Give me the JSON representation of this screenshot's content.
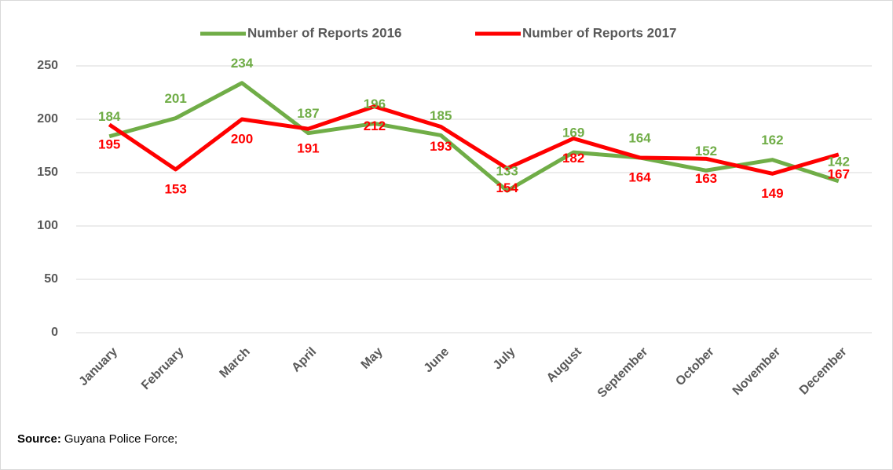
{
  "chart_data": {
    "type": "line",
    "categories": [
      "January",
      "February",
      "March",
      "April",
      "May",
      "June",
      "July",
      "August",
      "September",
      "October",
      "November",
      "December"
    ],
    "series": [
      {
        "name": "Number of Reports 2016",
        "color": "#70ad47",
        "values": [
          184,
          201,
          234,
          187,
          196,
          185,
          133,
          169,
          164,
          152,
          162,
          142
        ]
      },
      {
        "name": "Number of Reports 2017",
        "color": "#ff0000",
        "values": [
          195,
          153,
          200,
          191,
          212,
          193,
          154,
          182,
          164,
          163,
          149,
          167
        ]
      }
    ],
    "ylim": [
      0,
      250
    ],
    "yticks": [
      0,
      50,
      100,
      150,
      200,
      250
    ],
    "grid": true,
    "legend": "top",
    "source_label": "Source:",
    "source": "Guyana Police Force;"
  }
}
